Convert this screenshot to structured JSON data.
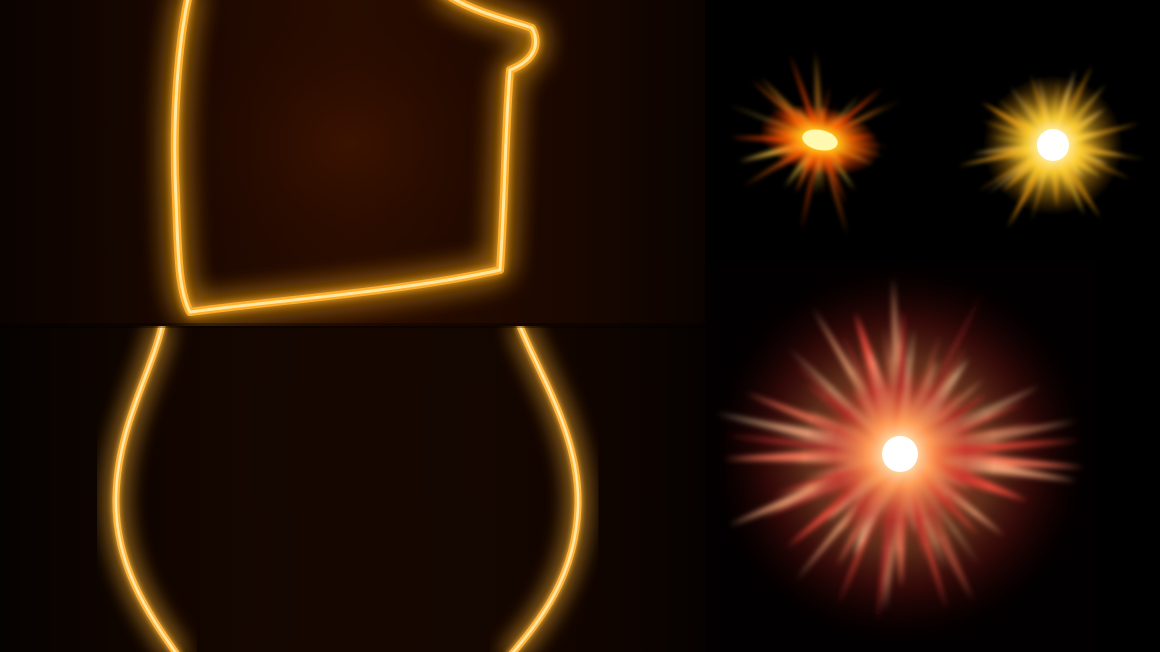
{
  "panels": [
    {
      "id": "glow-square-outline",
      "kind": "neon-outline",
      "color": "#ff9a1a"
    },
    {
      "id": "glow-curved-lines",
      "kind": "neon-outline",
      "color": "#ffb23a"
    },
    {
      "id": "lens-flare-orange",
      "kind": "starburst",
      "color": "#ff7a10"
    },
    {
      "id": "lens-flare-yellow",
      "kind": "starburst",
      "color": "#ffd040"
    },
    {
      "id": "lens-flare-red",
      "kind": "starburst",
      "color": "#ff5a3a"
    }
  ]
}
